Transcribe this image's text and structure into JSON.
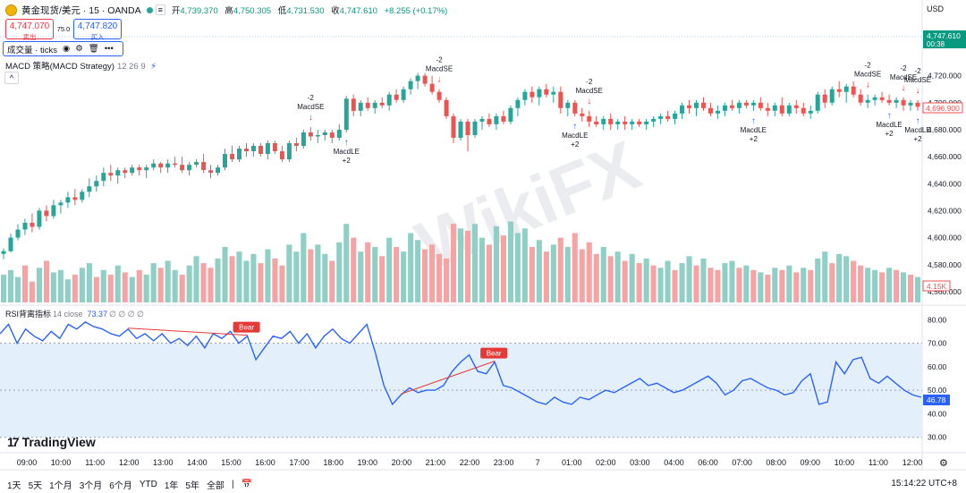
{
  "header": {
    "symbol": "黄金现货/美元 · 15 · OANDA",
    "open_label": "开",
    "open": "4,739.370",
    "high_label": "高",
    "high": "4,750.305",
    "low_label": "低",
    "low": "4,731.530",
    "close_label": "收",
    "close": "4,747.610",
    "change": "+8.255 (+0.17%)"
  },
  "trade": {
    "sell_price": "4,747.070",
    "sell_label": "卖出",
    "spread": "75.0",
    "buy_price": "4,747.820",
    "buy_label": "买入"
  },
  "pane_toolbar": {
    "label": "成交量 · ticks",
    "eye_icon": "eye-icon",
    "settings_icon": "settings-icon",
    "delete_icon": "trash-icon",
    "more": "•••"
  },
  "strategy": {
    "name": "MACD 策略(MACD Strategy)",
    "params": "12 26 9"
  },
  "rsi": {
    "name": "RSI背离指标",
    "params": "14 close",
    "value": "73.37",
    "extra": "∅ ∅ ∅ ∅"
  },
  "currency": "USD",
  "price_axis": {
    "last_price": "4,747.610",
    "countdown": "00:38",
    "ticks": [
      "4,720.000",
      "4,700.000",
      "4,680.000",
      "4,660.000",
      "4,640.000",
      "4,620.000",
      "4,600.000",
      "4,580.000",
      "4,560.000"
    ],
    "red_label": "4,696.900",
    "volume_label": "4.15K"
  },
  "rsi_axis": {
    "ticks": [
      "80.00",
      "70.00",
      "60.00",
      "50.00",
      "40.00",
      "30.00"
    ],
    "current": "46.78"
  },
  "time_axis": [
    "09:00",
    "10:00",
    "11:00",
    "12:00",
    "13:00",
    "14:00",
    "15:00",
    "16:00",
    "17:00",
    "18:00",
    "19:00",
    "20:00",
    "21:00",
    "22:00",
    "23:00",
    "7",
    "01:00",
    "02:00",
    "03:00",
    "04:00",
    "06:00",
    "07:00",
    "08:00",
    "09:00",
    "10:00",
    "11:00",
    "12:00"
  ],
  "branding": "TradingView",
  "watermark": "WikiFX",
  "ranges": [
    "1天",
    "5天",
    "1个月",
    "3个月",
    "6个月",
    "YTD",
    "1年",
    "5年",
    "全部"
  ],
  "clock": "15:14:22 UTC+8",
  "colors": {
    "up": "#26a69a",
    "down": "#ef5350",
    "rsi_line": "#2962ff",
    "rsi_band": "#e3f0fb"
  },
  "chart_data": {
    "type": "candlestick",
    "price_range": [
      4552,
      4735
    ],
    "candles": [
      [
        4588,
        4592,
        4584,
        4590
      ],
      [
        4590,
        4603,
        4589,
        4600
      ],
      [
        4600,
        4610,
        4598,
        4606
      ],
      [
        4606,
        4614,
        4602,
        4611
      ],
      [
        4611,
        4618,
        4604,
        4608
      ],
      [
        4608,
        4622,
        4606,
        4620
      ],
      [
        4620,
        4624,
        4612,
        4616
      ],
      [
        4616,
        4628,
        4614,
        4624
      ],
      [
        4624,
        4628,
        4618,
        4626
      ],
      [
        4626,
        4634,
        4622,
        4630
      ],
      [
        4630,
        4636,
        4624,
        4628
      ],
      [
        4628,
        4636,
        4626,
        4634
      ],
      [
        4634,
        4644,
        4630,
        4638
      ],
      [
        4638,
        4646,
        4634,
        4642
      ],
      [
        4642,
        4652,
        4638,
        4648
      ],
      [
        4648,
        4654,
        4642,
        4646
      ],
      [
        4646,
        4652,
        4640,
        4650
      ],
      [
        4650,
        4652,
        4644,
        4648
      ],
      [
        4648,
        4654,
        4646,
        4652
      ],
      [
        4652,
        4654,
        4646,
        4650
      ],
      [
        4650,
        4654,
        4644,
        4652
      ],
      [
        4652,
        4658,
        4650,
        4655
      ],
      [
        4655,
        4656,
        4648,
        4652
      ],
      [
        4652,
        4658,
        4648,
        4655
      ],
      [
        4655,
        4660,
        4652,
        4654
      ],
      [
        4654,
        4660,
        4648,
        4650
      ],
      [
        4650,
        4656,
        4646,
        4654
      ],
      [
        4654,
        4658,
        4652,
        4656
      ],
      [
        4656,
        4662,
        4648,
        4650
      ],
      [
        4650,
        4654,
        4644,
        4648
      ],
      [
        4648,
        4654,
        4646,
        4652
      ],
      [
        4652,
        4666,
        4650,
        4662
      ],
      [
        4662,
        4668,
        4656,
        4658
      ],
      [
        4658,
        4668,
        4656,
        4666
      ],
      [
        4666,
        4670,
        4660,
        4664
      ],
      [
        4664,
        4670,
        4660,
        4668
      ],
      [
        4668,
        4670,
        4660,
        4662
      ],
      [
        4662,
        4672,
        4658,
        4670
      ],
      [
        4670,
        4672,
        4662,
        4664
      ],
      [
        4664,
        4668,
        4656,
        4658
      ],
      [
        4658,
        4672,
        4656,
        4670
      ],
      [
        4670,
        4674,
        4664,
        4668
      ],
      [
        4668,
        4680,
        4666,
        4678
      ],
      [
        4678,
        4682,
        4672,
        4675
      ],
      [
        4675,
        4680,
        4670,
        4676
      ],
      [
        4676,
        4680,
        4672,
        4678
      ],
      [
        4678,
        4680,
        4670,
        4674
      ],
      [
        4674,
        4684,
        4672,
        4680
      ],
      [
        4680,
        4705,
        4678,
        4703
      ],
      [
        4703,
        4706,
        4690,
        4694
      ],
      [
        4694,
        4702,
        4690,
        4700
      ],
      [
        4700,
        4704,
        4694,
        4696
      ],
      [
        4696,
        4702,
        4692,
        4700
      ],
      [
        4700,
        4704,
        4696,
        4698
      ],
      [
        4698,
        4708,
        4694,
        4706
      ],
      [
        4706,
        4710,
        4700,
        4702
      ],
      [
        4702,
        4712,
        4700,
        4710
      ],
      [
        4710,
        4718,
        4706,
        4716
      ],
      [
        4716,
        4722,
        4710,
        4720
      ],
      [
        4720,
        4722,
        4712,
        4714
      ],
      [
        4714,
        4720,
        4706,
        4708
      ],
      [
        4708,
        4710,
        4700,
        4702
      ],
      [
        4702,
        4704,
        4688,
        4690
      ],
      [
        4690,
        4692,
        4670,
        4674
      ],
      [
        4674,
        4688,
        4672,
        4686
      ],
      [
        4686,
        4688,
        4664,
        4676
      ],
      [
        4676,
        4688,
        4674,
        4686
      ],
      [
        4686,
        4690,
        4680,
        4688
      ],
      [
        4688,
        4692,
        4682,
        4684
      ],
      [
        4684,
        4692,
        4680,
        4690
      ],
      [
        4690,
        4694,
        4684,
        4686
      ],
      [
        4686,
        4698,
        4684,
        4696
      ],
      [
        4696,
        4704,
        4690,
        4702
      ],
      [
        4702,
        4710,
        4698,
        4708
      ],
      [
        4708,
        4712,
        4700,
        4704
      ],
      [
        4704,
        4712,
        4698,
        4710
      ],
      [
        4710,
        4714,
        4704,
        4706
      ],
      [
        4706,
        4712,
        4700,
        4708
      ],
      [
        4708,
        4712,
        4692,
        4696
      ],
      [
        4696,
        4702,
        4690,
        4700
      ],
      [
        4700,
        4702,
        4690,
        4692
      ],
      [
        4692,
        4696,
        4686,
        4690
      ],
      [
        4690,
        4694,
        4682,
        4686
      ],
      [
        4686,
        4690,
        4682,
        4684
      ],
      [
        4684,
        4690,
        4680,
        4688
      ],
      [
        4688,
        4692,
        4680,
        4684
      ],
      [
        4684,
        4688,
        4680,
        4686
      ],
      [
        4686,
        4690,
        4680,
        4684
      ],
      [
        4684,
        4688,
        4680,
        4686
      ],
      [
        4686,
        4688,
        4682,
        4684
      ],
      [
        4684,
        4688,
        4680,
        4686
      ],
      [
        4686,
        4690,
        4682,
        4688
      ],
      [
        4688,
        4692,
        4684,
        4690
      ],
      [
        4690,
        4694,
        4686,
        4688
      ],
      [
        4688,
        4694,
        4684,
        4692
      ],
      [
        4692,
        4700,
        4688,
        4698
      ],
      [
        4698,
        4702,
        4692,
        4696
      ],
      [
        4696,
        4702,
        4690,
        4700
      ],
      [
        4700,
        4704,
        4694,
        4696
      ],
      [
        4696,
        4700,
        4690,
        4692
      ],
      [
        4692,
        4698,
        4688,
        4694
      ],
      [
        4694,
        4700,
        4690,
        4698
      ],
      [
        4698,
        4702,
        4694,
        4696
      ],
      [
        4696,
        4702,
        4692,
        4700
      ],
      [
        4700,
        4702,
        4696,
        4698
      ],
      [
        4698,
        4702,
        4694,
        4700
      ],
      [
        4700,
        4704,
        4694,
        4696
      ],
      [
        4696,
        4700,
        4690,
        4694
      ],
      [
        4694,
        4700,
        4690,
        4698
      ],
      [
        4698,
        4704,
        4690,
        4692
      ],
      [
        4692,
        4700,
        4690,
        4698
      ],
      [
        4698,
        4702,
        4692,
        4696
      ],
      [
        4696,
        4700,
        4690,
        4692
      ],
      [
        4692,
        4698,
        4688,
        4694
      ],
      [
        4694,
        4708,
        4692,
        4706
      ],
      [
        4706,
        4710,
        4696,
        4700
      ],
      [
        4700,
        4712,
        4698,
        4710
      ],
      [
        4710,
        4716,
        4704,
        4708
      ],
      [
        4708,
        4714,
        4700,
        4712
      ],
      [
        4712,
        4716,
        4704,
        4706
      ],
      [
        4706,
        4710,
        4698,
        4700
      ],
      [
        4700,
        4706,
        4696,
        4702
      ],
      [
        4702,
        4706,
        4698,
        4704
      ],
      [
        4704,
        4708,
        4700,
        4702
      ],
      [
        4702,
        4706,
        4698,
        4700
      ],
      [
        4700,
        4704,
        4696,
        4702
      ],
      [
        4702,
        4704,
        4694,
        4698
      ],
      [
        4698,
        4702,
        4694,
        4700
      ],
      [
        4700,
        4702,
        4694,
        4697
      ]
    ],
    "volume_range": [
      0,
      180
    ],
    "volumes": [
      [
        60,
        1
      ],
      [
        70,
        1
      ],
      [
        55,
        1
      ],
      [
        80,
        0
      ],
      [
        45,
        0
      ],
      [
        75,
        1
      ],
      [
        90,
        0
      ],
      [
        65,
        1
      ],
      [
        70,
        1
      ],
      [
        50,
        1
      ],
      [
        60,
        0
      ],
      [
        75,
        1
      ],
      [
        85,
        1
      ],
      [
        55,
        0
      ],
      [
        70,
        1
      ],
      [
        60,
        0
      ],
      [
        80,
        1
      ],
      [
        65,
        0
      ],
      [
        55,
        1
      ],
      [
        70,
        0
      ],
      [
        60,
        1
      ],
      [
        85,
        1
      ],
      [
        75,
        0
      ],
      [
        90,
        1
      ],
      [
        70,
        1
      ],
      [
        60,
        0
      ],
      [
        80,
        1
      ],
      [
        100,
        1
      ],
      [
        85,
        0
      ],
      [
        75,
        0
      ],
      [
        95,
        1
      ],
      [
        120,
        1
      ],
      [
        100,
        0
      ],
      [
        110,
        1
      ],
      [
        90,
        1
      ],
      [
        105,
        1
      ],
      [
        85,
        0
      ],
      [
        115,
        1
      ],
      [
        95,
        0
      ],
      [
        80,
        0
      ],
      [
        125,
        1
      ],
      [
        110,
        1
      ],
      [
        150,
        1
      ],
      [
        115,
        0
      ],
      [
        125,
        1
      ],
      [
        105,
        1
      ],
      [
        90,
        0
      ],
      [
        130,
        1
      ],
      [
        170,
        1
      ],
      [
        140,
        0
      ],
      [
        110,
        1
      ],
      [
        130,
        0
      ],
      [
        120,
        1
      ],
      [
        100,
        0
      ],
      [
        140,
        1
      ],
      [
        120,
        0
      ],
      [
        110,
        1
      ],
      [
        150,
        1
      ],
      [
        135,
        1
      ],
      [
        115,
        0
      ],
      [
        125,
        0
      ],
      [
        105,
        0
      ],
      [
        95,
        0
      ],
      [
        170,
        0
      ],
      [
        160,
        1
      ],
      [
        155,
        0
      ],
      [
        170,
        1
      ],
      [
        140,
        1
      ],
      [
        125,
        0
      ],
      [
        165,
        1
      ],
      [
        145,
        0
      ],
      [
        175,
        1
      ],
      [
        150,
        1
      ],
      [
        160,
        1
      ],
      [
        120,
        0
      ],
      [
        135,
        1
      ],
      [
        110,
        0
      ],
      [
        125,
        1
      ],
      [
        140,
        0
      ],
      [
        120,
        1
      ],
      [
        150,
        0
      ],
      [
        115,
        0
      ],
      [
        130,
        0
      ],
      [
        105,
        0
      ],
      [
        120,
        1
      ],
      [
        100,
        0
      ],
      [
        110,
        1
      ],
      [
        90,
        0
      ],
      [
        105,
        1
      ],
      [
        85,
        0
      ],
      [
        95,
        1
      ],
      [
        80,
        0
      ],
      [
        75,
        1
      ],
      [
        90,
        1
      ],
      [
        70,
        0
      ],
      [
        85,
        1
      ],
      [
        100,
        1
      ],
      [
        80,
        0
      ],
      [
        95,
        1
      ],
      [
        75,
        0
      ],
      [
        70,
        0
      ],
      [
        85,
        1
      ],
      [
        90,
        1
      ],
      [
        75,
        0
      ],
      [
        80,
        1
      ],
      [
        70,
        0
      ],
      [
        65,
        1
      ],
      [
        60,
        0
      ],
      [
        75,
        1
      ],
      [
        70,
        0
      ],
      [
        80,
        1
      ],
      [
        65,
        0
      ],
      [
        75,
        1
      ],
      [
        70,
        0
      ],
      [
        95,
        1
      ],
      [
        110,
        1
      ],
      [
        85,
        0
      ],
      [
        105,
        1
      ],
      [
        100,
        1
      ],
      [
        90,
        0
      ],
      [
        80,
        0
      ],
      [
        75,
        1
      ],
      [
        70,
        1
      ],
      [
        65,
        0
      ],
      [
        75,
        1
      ],
      [
        70,
        0
      ],
      [
        65,
        1
      ],
      [
        60,
        0
      ],
      [
        55,
        1
      ]
    ],
    "rsi_range": [
      28,
      82
    ],
    "rsi": [
      74,
      78,
      70,
      76,
      73,
      71,
      75,
      72,
      78,
      76,
      79,
      77,
      76,
      74,
      73,
      76,
      72,
      74,
      71,
      74,
      70,
      72,
      69,
      73,
      68,
      74,
      72,
      75,
      70,
      73,
      63,
      68,
      73,
      72,
      75,
      70,
      74,
      68,
      73,
      76,
      72,
      70,
      74,
      78,
      66,
      52,
      44,
      48,
      51,
      49,
      50,
      50,
      52,
      58,
      62,
      65,
      58,
      57,
      62,
      52,
      51,
      49,
      47,
      45,
      44,
      47,
      45,
      44,
      47,
      46,
      48,
      50,
      49,
      51,
      53,
      55,
      52,
      53,
      51,
      49,
      50,
      52,
      54,
      56,
      53,
      48,
      50,
      54,
      55,
      53,
      51,
      50,
      48,
      49,
      54,
      57,
      44,
      45,
      62,
      57,
      63,
      64,
      55,
      53,
      56,
      53,
      50,
      48,
      47
    ],
    "rsi_levels": [
      70,
      50,
      30
    ],
    "signals": [
      {
        "type": "MacdSE",
        "qty": "-2",
        "dir": "down",
        "candle": 43
      },
      {
        "type": "MacdLE",
        "qty": "+2",
        "dir": "up",
        "candle": 48
      },
      {
        "type": "MacdSE",
        "qty": "-2",
        "dir": "down",
        "candle": 61
      },
      {
        "type": "MacdSE",
        "qty": "-2",
        "dir": "down",
        "candle": 82
      },
      {
        "type": "MacdLE",
        "qty": "+2",
        "dir": "up",
        "candle": 80
      },
      {
        "type": "MacdLE",
        "qty": "+2",
        "dir": "up",
        "candle": 105
      },
      {
        "type": "MacdSE",
        "qty": "-2",
        "dir": "down",
        "candle": 121
      },
      {
        "type": "MacdLE",
        "qty": "+2",
        "dir": "up",
        "candle": 124
      },
      {
        "type": "MacdSE",
        "qty": "-2",
        "dir": "down",
        "candle": 126
      },
      {
        "type": "MacdLE",
        "qty": "+2",
        "dir": "up",
        "candle": 129
      },
      {
        "type": "MacdSE",
        "qty": "-2",
        "dir": "down",
        "candle": 143
      }
    ],
    "divergences": [
      {
        "label": "Bear",
        "from": 15,
        "to": 29
      },
      {
        "label": "Bear",
        "from": 47,
        "to": 58
      }
    ]
  }
}
